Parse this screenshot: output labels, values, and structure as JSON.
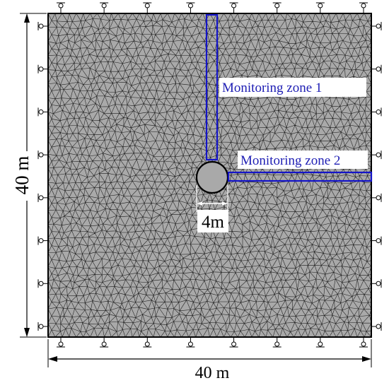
{
  "diagram": {
    "dimensions": {
      "width_label": "40 m",
      "height_label": "40 m",
      "tunnel_diameter_label": "4m"
    },
    "monitoring_zones": [
      {
        "label": "Monitoring zone 1",
        "orientation": "vertical"
      },
      {
        "label": "Monitoring zone 2",
        "orientation": "horizontal"
      }
    ],
    "colors": {
      "mesh_fill": "#a9a9a9",
      "mesh_line": "#1a1a1a",
      "zone_outline": "#1414c8",
      "zone_text": "#1e1eb4",
      "dimension_line": "#000000",
      "background": "#ffffff"
    },
    "supports": {
      "top_count": 8,
      "bottom_count": 8,
      "left_count": 8,
      "right_count": 8
    }
  }
}
